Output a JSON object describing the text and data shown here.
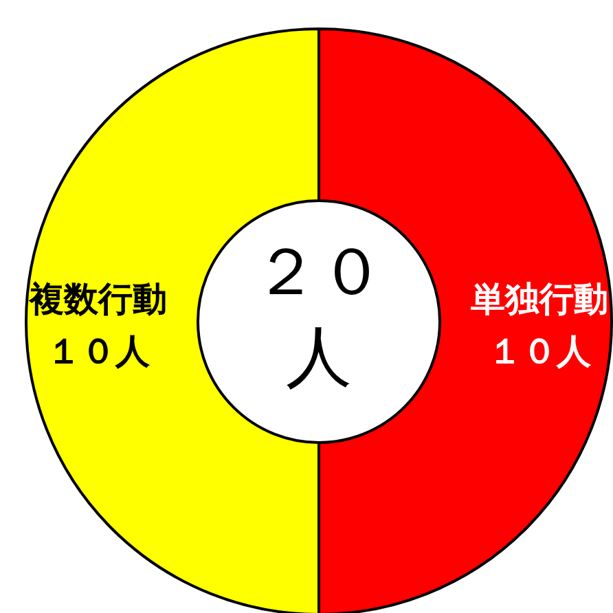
{
  "chart_data": {
    "type": "donut",
    "categories": [
      "単独行動",
      "複数行動"
    ],
    "values": [
      10,
      10
    ],
    "colors": [
      "#ff0000",
      "#ffff00"
    ],
    "value_labels": [
      "１０人",
      "１０人"
    ],
    "annotations": [
      "２０人"
    ]
  }
}
